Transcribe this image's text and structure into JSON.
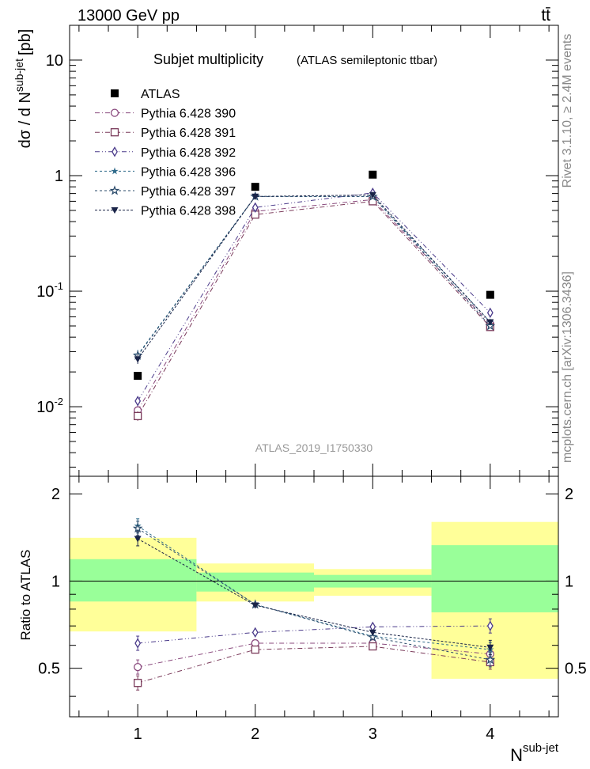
{
  "header": {
    "energy_label": "13000 GeV pp",
    "process_label": "tt̄"
  },
  "side_labels": {
    "rivet": "Rivet 3.1.10, ≥ 2.4M events",
    "mcplots": "mcplots.cern.ch [arXiv:1306.3436]"
  },
  "colors": {
    "data": "#000000",
    "pythia_390": "#8a4a7e",
    "pythia_391": "#7a3a5a",
    "pythia_392": "#4a3a8a",
    "pythia_396": "#2e6a8a",
    "pythia_397": "#2a4a6a",
    "pythia_398": "#1a2448",
    "band_inner": "#99ff99",
    "band_outer": "#ffff99"
  },
  "chart_data": [
    {
      "type": "scatter",
      "title": "Subjet multiplicity",
      "subtitle": "(ATLAS semileptonic ttbar)",
      "watermark": "ATLAS_2019_I1750330",
      "ylabel": "dσ / d N^{sub-jet} [pb]",
      "ylabel_parts": {
        "main": "dσ / d N",
        "sup": "sub-jet",
        "unit": "[pb]"
      },
      "xlabel": "",
      "yscale": "log",
      "xlim": [
        0.42,
        4.58
      ],
      "ylim": [
        0.0025,
        20
      ],
      "x": [
        1,
        2,
        3,
        4
      ],
      "ytick_labels": [
        "10^{-2}",
        "10^{-1}",
        "1",
        "10"
      ],
      "series": [
        {
          "name": "ATLAS",
          "marker": "square-filled",
          "color_key": "data",
          "values": [
            0.0185,
            0.8,
            1.02,
            0.093
          ]
        },
        {
          "name": "Pythia 6.428 390",
          "marker": "circle-open",
          "color_key": "pythia_390",
          "values": [
            0.0093,
            0.49,
            0.62,
            0.052
          ]
        },
        {
          "name": "Pythia 6.428 391",
          "marker": "square-open",
          "color_key": "pythia_391",
          "values": [
            0.0083,
            0.46,
            0.6,
            0.049
          ]
        },
        {
          "name": "Pythia 6.428 392",
          "marker": "diamond-open",
          "color_key": "pythia_392",
          "values": [
            0.0112,
            0.53,
            0.71,
            0.065
          ]
        },
        {
          "name": "Pythia 6.428 396",
          "marker": "star-small",
          "color_key": "pythia_396",
          "values": [
            0.0282,
            0.66,
            0.66,
            0.054
          ]
        },
        {
          "name": "Pythia 6.428 397",
          "marker": "star-open",
          "color_key": "pythia_397",
          "values": [
            0.0277,
            0.66,
            0.66,
            0.05
          ]
        },
        {
          "name": "Pythia 6.428 398",
          "marker": "triangle-down-filled",
          "color_key": "pythia_398",
          "values": [
            0.0258,
            0.66,
            0.68,
            0.054
          ]
        }
      ]
    },
    {
      "type": "scatter",
      "title": "",
      "xlabel": "N^{sub-jet}",
      "xlabel_parts": {
        "main": "N",
        "sup": "sub-jet"
      },
      "ylabel": "Ratio to ATLAS",
      "xlim": [
        0.42,
        4.58
      ],
      "ylim": [
        0.34,
        2.3
      ],
      "x": [
        1,
        2,
        3,
        4
      ],
      "xtick_labels": [
        "1",
        "2",
        "3",
        "4"
      ],
      "ytick_labels": [
        "0.5",
        "1",
        "2"
      ],
      "reference_line": 1,
      "uncertainty_bands": {
        "bins": [
          [
            0.42,
            1.5
          ],
          [
            1.5,
            2.5
          ],
          [
            2.5,
            3.5
          ],
          [
            3.5,
            4.58
          ]
        ],
        "inner": [
          [
            0.85,
            1.19
          ],
          [
            0.92,
            1.07
          ],
          [
            0.95,
            1.05
          ],
          [
            0.78,
            1.33
          ]
        ],
        "outer": [
          [
            0.67,
            1.41
          ],
          [
            0.85,
            1.15
          ],
          [
            0.89,
            1.1
          ],
          [
            0.46,
            1.6
          ]
        ]
      },
      "series": [
        {
          "name": "Pythia 6.428 390",
          "marker": "circle-open",
          "color_key": "pythia_390",
          "values": [
            0.505,
            0.61,
            0.61,
            0.56
          ]
        },
        {
          "name": "Pythia 6.428 391",
          "marker": "square-open",
          "color_key": "pythia_391",
          "values": [
            0.445,
            0.58,
            0.595,
            0.525
          ]
        },
        {
          "name": "Pythia 6.428 392",
          "marker": "diamond-open",
          "color_key": "pythia_392",
          "values": [
            0.61,
            0.665,
            0.695,
            0.7
          ]
        },
        {
          "name": "Pythia 6.428 396",
          "marker": "star-small",
          "color_key": "pythia_396",
          "values": [
            1.55,
            0.83,
            0.645,
            0.58
          ]
        },
        {
          "name": "Pythia 6.428 397",
          "marker": "star-open",
          "color_key": "pythia_397",
          "values": [
            1.52,
            0.83,
            0.64,
            0.535
          ]
        },
        {
          "name": "Pythia 6.428 398",
          "marker": "triangle-down-filled",
          "color_key": "pythia_398",
          "values": [
            1.4,
            0.825,
            0.665,
            0.59
          ]
        }
      ]
    }
  ]
}
